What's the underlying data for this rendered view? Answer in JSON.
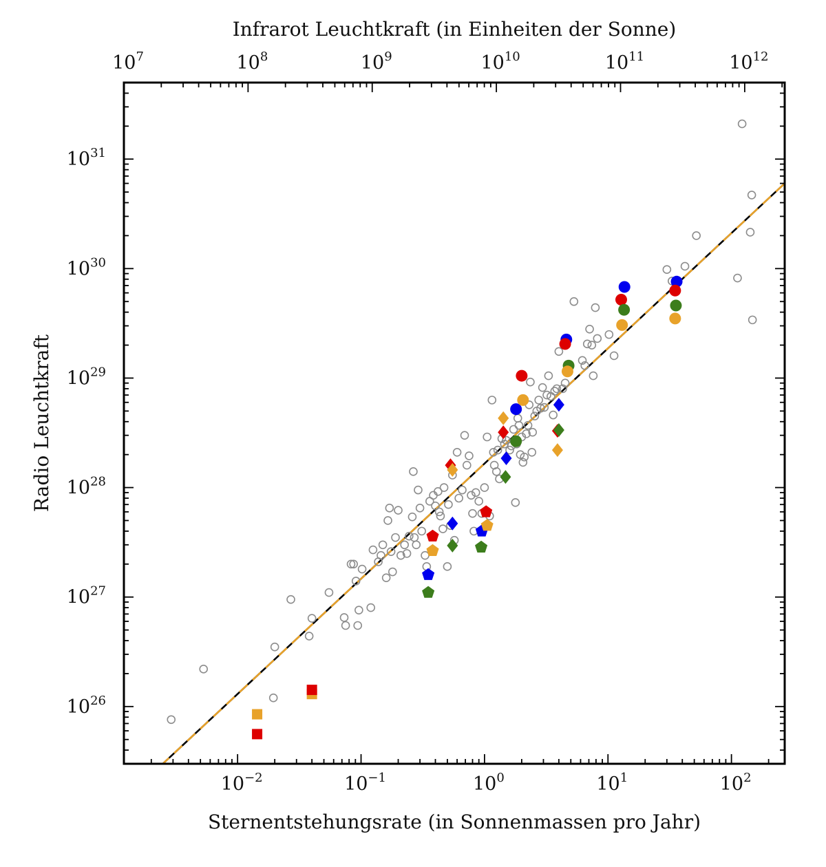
{
  "chart_data": {
    "type": "scatter",
    "title": "",
    "xlabel": "Sternentstehungsrate (in Sonnenmassen pro Jahr)",
    "ylabel": "Radio Leuchtkraft",
    "top_xlabel": "Infrarot Leuchtkraft (in Einheiten der Sonne)",
    "x_scale": "log",
    "y_scale": "log",
    "xlim": [
      0.0012,
      270
    ],
    "ylim": [
      3e+25,
      5e+31
    ],
    "top_xlim": [
      10000000.0,
      2100000000000.0
    ],
    "x_ticks": [
      {
        "base": "10",
        "exp": "−2",
        "value": 0.01
      },
      {
        "base": "10",
        "exp": "−1",
        "value": 0.1
      },
      {
        "base": "10",
        "exp": "0",
        "value": 1
      },
      {
        "base": "10",
        "exp": "1",
        "value": 10
      },
      {
        "base": "10",
        "exp": "2",
        "value": 100
      }
    ],
    "y_ticks": [
      {
        "base": "10",
        "exp": "26",
        "value": 1e+26
      },
      {
        "base": "10",
        "exp": "27",
        "value": 1e+27
      },
      {
        "base": "10",
        "exp": "28",
        "value": 1e+28
      },
      {
        "base": "10",
        "exp": "29",
        "value": 1e+29
      },
      {
        "base": "10",
        "exp": "30",
        "value": 1e+30
      },
      {
        "base": "10",
        "exp": "31",
        "value": 1e+31
      }
    ],
    "top_ticks": [
      {
        "base": "10",
        "exp": "7",
        "value": 10000000.0
      },
      {
        "base": "10",
        "exp": "8",
        "value": 100000000.0
      },
      {
        "base": "10",
        "exp": "9",
        "value": 1000000000.0
      },
      {
        "base": "10",
        "exp": "10",
        "value": 10000000000.0
      },
      {
        "base": "10",
        "exp": "11",
        "value": 100000000000.0
      },
      {
        "base": "10",
        "exp": "12",
        "value": 1000000000000.0
      }
    ],
    "lines": [
      {
        "style": "solid",
        "color": "#000000",
        "points": [
          [
            0.0024,
            2.9e+25
          ],
          [
            270,
            6e+30
          ]
        ]
      },
      {
        "style": "dashed",
        "color": "#e8a22a",
        "points": [
          [
            0.0024,
            2.9e+25
          ],
          [
            270,
            6e+30
          ]
        ]
      }
    ],
    "series": [
      {
        "marker": "open-circle",
        "color": "#8c8c8c",
        "points": [
          [
            0.0029,
            7.6e+25
          ],
          [
            0.0053,
            2.2e+26
          ],
          [
            0.0195,
            1.2e+26
          ],
          [
            0.02,
            3.5e+26
          ],
          [
            0.027,
            9.5e+26
          ],
          [
            0.038,
            4.4e+26
          ],
          [
            0.04,
            6.4e+26
          ],
          [
            0.055,
            1.1e+27
          ],
          [
            0.073,
            6.5e+26
          ],
          [
            0.075,
            5.5e+26
          ],
          [
            0.083,
            2e+27
          ],
          [
            0.087,
            2e+27
          ],
          [
            0.091,
            1.4e+27
          ],
          [
            0.094,
            5.5e+26
          ],
          [
            0.096,
            7.6e+26
          ],
          [
            0.102,
            1.8e+27
          ],
          [
            0.12,
            8e+26
          ],
          [
            0.125,
            2.7e+27
          ],
          [
            0.138,
            2.1e+27
          ],
          [
            0.145,
            2.4e+27
          ],
          [
            0.15,
            3e+27
          ],
          [
            0.16,
            1.5e+27
          ],
          [
            0.165,
            5e+27
          ],
          [
            0.17,
            6.5e+27
          ],
          [
            0.175,
            2.6e+27
          ],
          [
            0.18,
            1.7e+27
          ],
          [
            0.19,
            3.5e+27
          ],
          [
            0.2,
            6.2e+27
          ],
          [
            0.21,
            2.4e+27
          ],
          [
            0.225,
            3e+27
          ],
          [
            0.235,
            2.5e+27
          ],
          [
            0.245,
            3.6e+27
          ],
          [
            0.26,
            5.4e+27
          ],
          [
            0.265,
            1.4e+28
          ],
          [
            0.27,
            3.5e+27
          ],
          [
            0.28,
            3e+27
          ],
          [
            0.29,
            9.5e+27
          ],
          [
            0.3,
            6.5e+27
          ],
          [
            0.31,
            4e+27
          ],
          [
            0.33,
            2.4e+27
          ],
          [
            0.34,
            1.9e+27
          ],
          [
            0.36,
            7.5e+27
          ],
          [
            0.385,
            8.5e+27
          ],
          [
            0.4,
            6.8e+27
          ],
          [
            0.42,
            9.2e+27
          ],
          [
            0.43,
            6e+27
          ],
          [
            0.44,
            5.5e+27
          ],
          [
            0.46,
            4.2e+27
          ],
          [
            0.47,
            1e+28
          ],
          [
            0.5,
            1.9e+27
          ],
          [
            0.51,
            7e+27
          ],
          [
            0.53,
            4.5e+27
          ],
          [
            0.55,
            1.3e+28
          ],
          [
            0.57,
            3.3e+27
          ],
          [
            0.6,
            2.1e+28
          ],
          [
            0.62,
            8e+27
          ],
          [
            0.66,
            9.5e+27
          ],
          [
            0.69,
            3e+28
          ],
          [
            0.72,
            1.6e+28
          ],
          [
            0.75,
            1.95e+28
          ],
          [
            0.78,
            8.5e+27
          ],
          [
            0.8,
            5.8e+27
          ],
          [
            0.82,
            4e+27
          ],
          [
            0.85,
            9e+27
          ],
          [
            0.9,
            7.5e+27
          ],
          [
            0.95,
            5.8e+27
          ],
          [
            1.0,
            1e+28
          ],
          [
            1.05,
            2.9e+28
          ],
          [
            1.1,
            5.5e+27
          ],
          [
            1.15,
            6.3e+28
          ],
          [
            1.18,
            2.1e+28
          ],
          [
            1.2,
            1.6e+28
          ],
          [
            1.25,
            1.4e+28
          ],
          [
            1.28,
            2.2e+28
          ],
          [
            1.32,
            1.2e+28
          ],
          [
            1.38,
            2.8e+28
          ],
          [
            1.45,
            2.5e+28
          ],
          [
            1.5,
            2.7e+28
          ],
          [
            1.6,
            2.2e+28
          ],
          [
            1.65,
            2.4e+28
          ],
          [
            1.72,
            3.4e+28
          ],
          [
            1.78,
            7.3e+27
          ],
          [
            1.82,
            2.5e+28
          ],
          [
            1.86,
            4.3e+28
          ],
          [
            1.9,
            3.7e+28
          ],
          [
            1.95,
            2e+28
          ],
          [
            2.0,
            2.9e+28
          ],
          [
            2.05,
            1.7e+28
          ],
          [
            2.1,
            1.9e+28
          ],
          [
            2.18,
            3.1e+28
          ],
          [
            2.25,
            3.7e+28
          ],
          [
            2.3,
            5.7e+28
          ],
          [
            2.35,
            9.2e+28
          ],
          [
            2.42,
            2.1e+28
          ],
          [
            2.45,
            3.2e+28
          ],
          [
            2.55,
            4.5e+28
          ],
          [
            2.65,
            5e+28
          ],
          [
            2.75,
            6.3e+28
          ],
          [
            2.85,
            5.3e+28
          ],
          [
            2.95,
            8.2e+28
          ],
          [
            3.05,
            5.4e+28
          ],
          [
            3.2,
            7e+28
          ],
          [
            3.3,
            1.05e+29
          ],
          [
            3.45,
            6.8e+28
          ],
          [
            3.6,
            4.6e+28
          ],
          [
            3.7,
            7.6e+28
          ],
          [
            3.85,
            8e+28
          ],
          [
            4.0,
            1.75e+29
          ],
          [
            4.3,
            8e+28
          ],
          [
            4.5,
            9e+28
          ],
          [
            4.8,
            1.3e+29
          ],
          [
            5.3,
            5e+29
          ],
          [
            6.2,
            1.45e+29
          ],
          [
            6.5,
            1.3e+29
          ],
          [
            6.8,
            2.05e+29
          ],
          [
            7.1,
            2.8e+29
          ],
          [
            7.4,
            2e+29
          ],
          [
            7.6,
            1.05e+29
          ],
          [
            7.9,
            4.4e+29
          ],
          [
            8.2,
            2.3e+29
          ],
          [
            10.2,
            2.5e+29
          ],
          [
            11.2,
            1.6e+29
          ],
          [
            30.0,
            9.8e+29
          ],
          [
            33.0,
            7.7e+29
          ],
          [
            42.0,
            1.05e+30
          ],
          [
            52.0,
            2e+30
          ],
          [
            112.0,
            8.2e+29
          ],
          [
            122.0,
            2.1e+31
          ],
          [
            142.0,
            2.15e+30
          ],
          [
            146.0,
            4.7e+30
          ],
          [
            148.0,
            3.4e+29
          ]
        ]
      },
      {
        "marker": "circle",
        "color": "#0000ee",
        "points": [
          [
            1.8,
            5.2e+28
          ],
          [
            4.6,
            2.25e+29
          ],
          [
            13.6,
            6.8e+29
          ],
          [
            36.0,
            7.6e+29
          ]
        ]
      },
      {
        "marker": "circle",
        "color": "#dd0000",
        "points": [
          [
            2.0,
            1.05e+29
          ],
          [
            4.5,
            2.05e+29
          ],
          [
            12.8,
            5.2e+29
          ],
          [
            35.0,
            6.3e+29
          ]
        ]
      },
      {
        "marker": "circle",
        "color": "#3c7d1c",
        "points": [
          [
            1.8,
            2.65e+28
          ],
          [
            4.8,
            1.3e+29
          ],
          [
            13.5,
            4.2e+29
          ],
          [
            35.5,
            4.6e+29
          ]
        ]
      },
      {
        "marker": "circle",
        "color": "#e8a22a",
        "points": [
          [
            2.05,
            6.3e+28
          ],
          [
            4.7,
            1.15e+29
          ],
          [
            13.0,
            3.05e+29
          ],
          [
            35.0,
            3.5e+29
          ]
        ]
      },
      {
        "marker": "diamond",
        "color": "#0000ee",
        "points": [
          [
            0.55,
            4.7e+27
          ],
          [
            1.5,
            1.85e+28
          ],
          [
            4.0,
            5.7e+28
          ]
        ]
      },
      {
        "marker": "diamond",
        "color": "#dd0000",
        "points": [
          [
            0.53,
            1.6e+28
          ],
          [
            1.42,
            3.2e+28
          ],
          [
            3.9,
            3.3e+28
          ]
        ]
      },
      {
        "marker": "diamond",
        "color": "#3c7d1c",
        "points": [
          [
            0.55,
            2.95e+27
          ],
          [
            1.48,
            1.25e+28
          ],
          [
            4.0,
            3.35e+28
          ]
        ]
      },
      {
        "marker": "diamond",
        "color": "#e8a22a",
        "points": [
          [
            0.55,
            1.45e+28
          ],
          [
            1.42,
            4.3e+28
          ],
          [
            3.9,
            2.2e+28
          ]
        ]
      },
      {
        "marker": "pentagon",
        "color": "#0000ee",
        "points": [
          [
            0.35,
            1.6e+27
          ],
          [
            0.95,
            4e+27
          ]
        ]
      },
      {
        "marker": "pentagon",
        "color": "#dd0000",
        "points": [
          [
            0.38,
            3.6e+27
          ],
          [
            1.03,
            6e+27
          ]
        ]
      },
      {
        "marker": "pentagon",
        "color": "#3c7d1c",
        "points": [
          [
            0.35,
            1.1e+27
          ],
          [
            0.94,
            2.85e+27
          ]
        ]
      },
      {
        "marker": "pentagon",
        "color": "#e8a22a",
        "points": [
          [
            0.38,
            2.65e+27
          ],
          [
            1.05,
            4.5e+27
          ]
        ]
      },
      {
        "marker": "square",
        "color": "#e8a22a",
        "points": [
          [
            0.0144,
            8.5e+25
          ],
          [
            0.04,
            1.3e+26
          ]
        ]
      },
      {
        "marker": "square",
        "color": "#dd0000",
        "points": [
          [
            0.0144,
            5.6e+25
          ],
          [
            0.04,
            1.42e+26
          ]
        ]
      }
    ]
  }
}
